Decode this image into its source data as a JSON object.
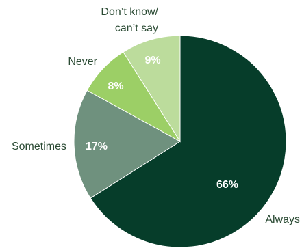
{
  "chart_data": {
    "type": "pie",
    "title": "",
    "slices": [
      {
        "label": "Always",
        "value": 66,
        "display": "66%",
        "color": "#063d2a"
      },
      {
        "label": "Sometimes",
        "value": 17,
        "display": "17%",
        "color": "#6f917e"
      },
      {
        "label": "Never",
        "value": 8,
        "display": "8%",
        "color": "#9ccf66"
      },
      {
        "label": "Don’t know/ can’t say",
        "label_lines": [
          "Don’t know/",
          "can’t say"
        ],
        "value": 9,
        "display": "9%",
        "color": "#bcdc9c"
      }
    ],
    "start": "12 o'clock",
    "direction": "clockwise",
    "legend": "none (labels outside slices)"
  }
}
